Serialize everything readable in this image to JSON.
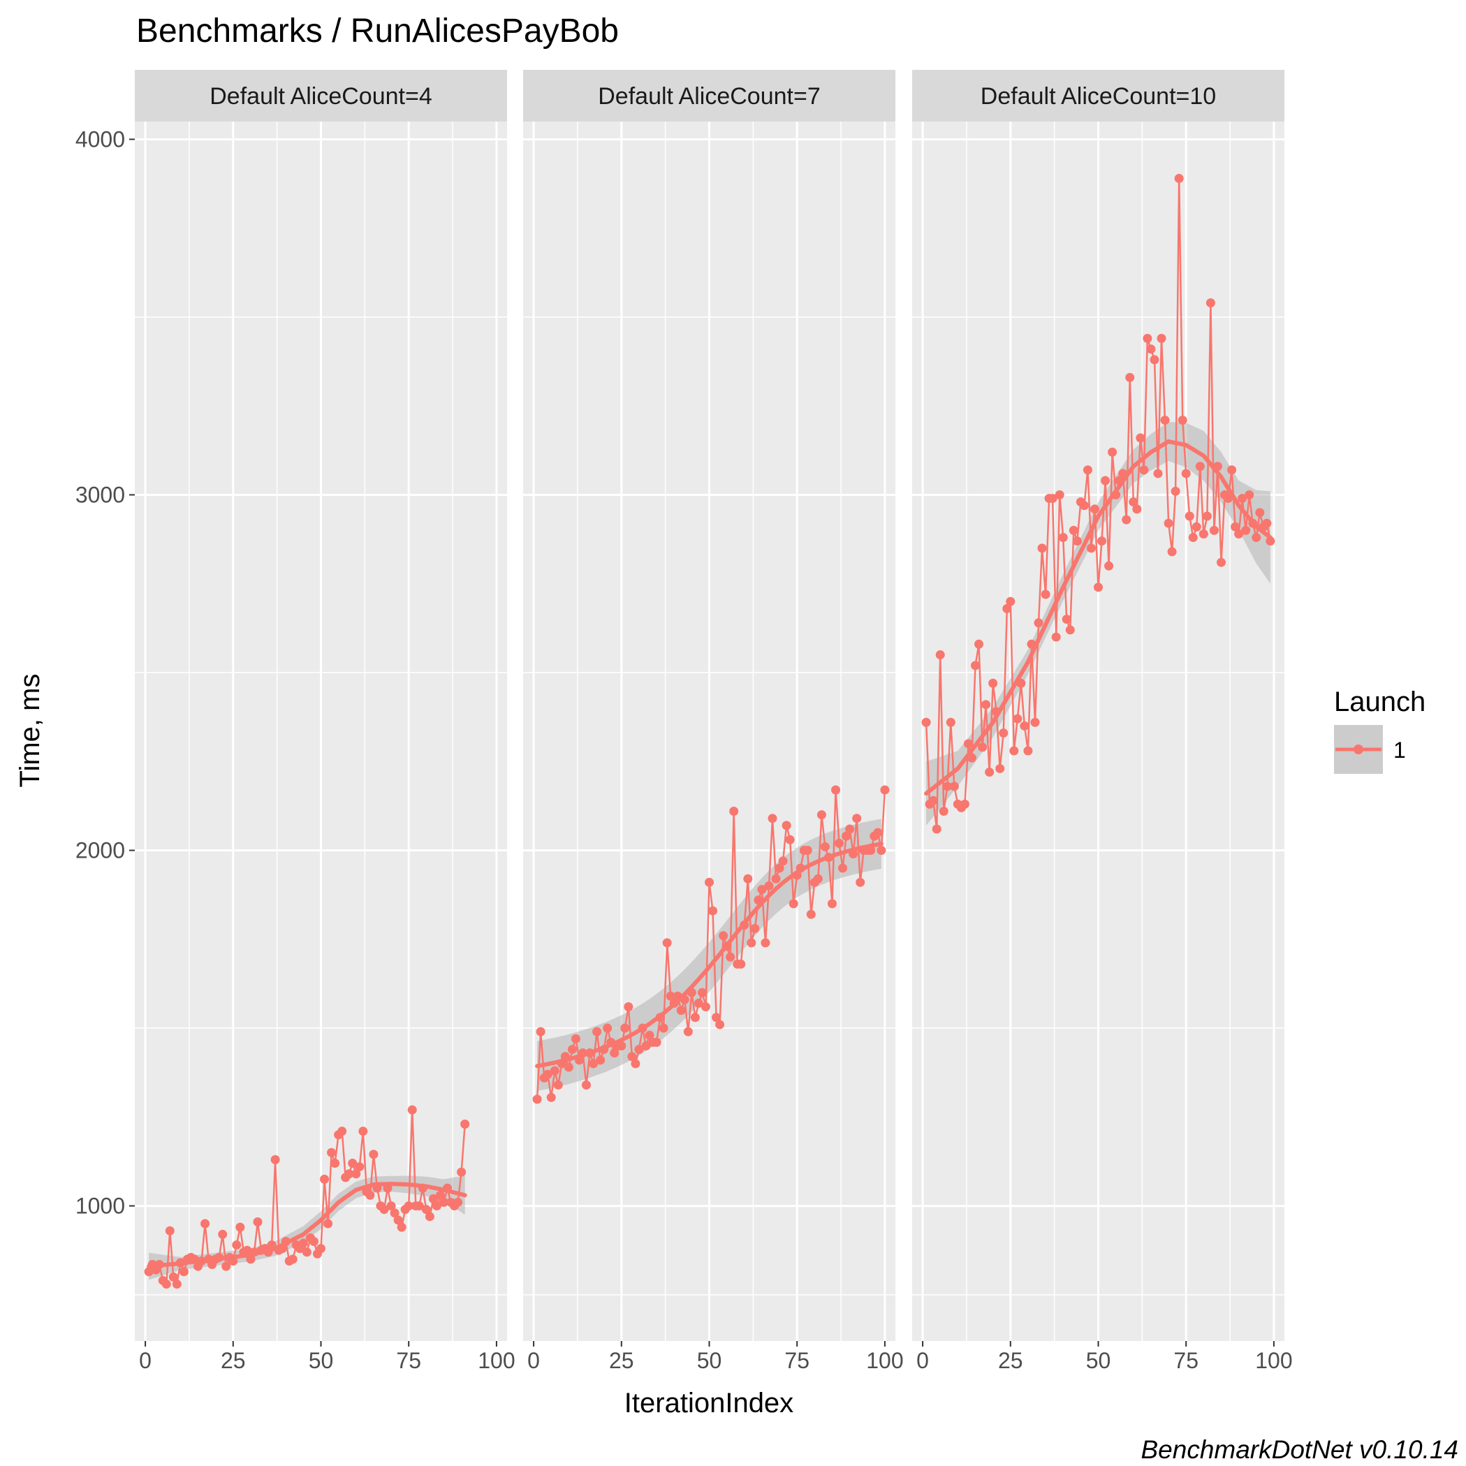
{
  "title": "Benchmarks / RunAlicesPayBob",
  "caption": "BenchmarkDotNet v0.10.14",
  "colors": {
    "series": "#f8766d",
    "panel_bg": "#ebebeb",
    "strip_bg": "#d9d9d9",
    "grid": "#ffffff",
    "ribbon": "#b3b3b3"
  },
  "legend": {
    "title": "Launch",
    "items": [
      "1"
    ]
  },
  "chart_data": {
    "type": "line",
    "facets": [
      "Default AliceCount=4",
      "Default AliceCount=7",
      "Default AliceCount=10"
    ],
    "xlabel": "IterationIndex",
    "ylabel": "Time, ms",
    "xlim": [
      -3,
      103
    ],
    "ylim": [
      620,
      4050
    ],
    "x_ticks": [
      0,
      25,
      50,
      75,
      100
    ],
    "x_tick_labels": [
      "0",
      "25",
      "50",
      "75",
      "100"
    ],
    "y_ticks": [
      1000,
      2000,
      3000,
      4000
    ],
    "y_tick_labels": [
      "1000",
      "2000",
      "3000",
      "4000"
    ],
    "grid": true,
    "legend_position": "right",
    "series": [
      {
        "facet": "Default AliceCount=4",
        "name": "1",
        "x": [
          1,
          2,
          3,
          4,
          5,
          6,
          7,
          8,
          9,
          10,
          11,
          12,
          13,
          14,
          15,
          16,
          17,
          18,
          19,
          20,
          21,
          22,
          23,
          24,
          25,
          26,
          27,
          28,
          29,
          30,
          31,
          32,
          33,
          34,
          35,
          36,
          37,
          38,
          39,
          40,
          41,
          42,
          43,
          44,
          45,
          46,
          47,
          48,
          49,
          50,
          51,
          52,
          53,
          54,
          55,
          56,
          57,
          58,
          59,
          60,
          61,
          62,
          63,
          64,
          65,
          66,
          67,
          68,
          69,
          70,
          71,
          72,
          73,
          74,
          75,
          76,
          77,
          78,
          79,
          80,
          81,
          82,
          83,
          84,
          85,
          86,
          87,
          88,
          89,
          90,
          91
        ],
        "values": [
          815,
          835,
          820,
          835,
          790,
          780,
          930,
          800,
          780,
          840,
          815,
          850,
          855,
          850,
          830,
          845,
          950,
          850,
          835,
          850,
          855,
          920,
          830,
          855,
          845,
          890,
          940,
          870,
          875,
          850,
          870,
          955,
          875,
          880,
          870,
          890,
          1130,
          875,
          880,
          900,
          845,
          850,
          890,
          880,
          895,
          870,
          910,
          900,
          865,
          880,
          1075,
          950,
          1150,
          1120,
          1200,
          1210,
          1080,
          1090,
          1120,
          1090,
          1110,
          1210,
          1040,
          1030,
          1145,
          1050,
          1000,
          990,
          1050,
          1000,
          980,
          960,
          940,
          990,
          1000,
          1270,
          1000,
          1000,
          1050,
          990,
          970,
          1020,
          1000,
          1030,
          1010,
          1050,
          1010,
          1000,
          1010,
          1095,
          1230
        ],
        "smooth": [
          [
            1,
            830
          ],
          [
            10,
            838
          ],
          [
            20,
            850
          ],
          [
            30,
            862
          ],
          [
            37,
            880
          ],
          [
            45,
            920
          ],
          [
            50,
            960
          ],
          [
            55,
            1010
          ],
          [
            60,
            1045
          ],
          [
            65,
            1060
          ],
          [
            70,
            1062
          ],
          [
            75,
            1060
          ],
          [
            80,
            1055
          ],
          [
            85,
            1045
          ],
          [
            91,
            1030
          ]
        ],
        "ribbon_halfwidth": [
          [
            1,
            38
          ],
          [
            10,
            18
          ],
          [
            30,
            18
          ],
          [
            50,
            25
          ],
          [
            70,
            22
          ],
          [
            85,
            30
          ],
          [
            91,
            55
          ]
        ]
      },
      {
        "facet": "Default AliceCount=7",
        "name": "1",
        "x": [
          1,
          2,
          3,
          4,
          5,
          6,
          7,
          8,
          9,
          10,
          11,
          12,
          13,
          14,
          15,
          16,
          17,
          18,
          19,
          20,
          21,
          22,
          23,
          24,
          25,
          26,
          27,
          28,
          29,
          30,
          31,
          32,
          33,
          34,
          35,
          36,
          37,
          38,
          39,
          40,
          41,
          42,
          43,
          44,
          45,
          46,
          47,
          48,
          49,
          50,
          51,
          52,
          53,
          54,
          55,
          56,
          57,
          58,
          59,
          60,
          61,
          62,
          63,
          64,
          65,
          66,
          67,
          68,
          69,
          70,
          71,
          72,
          73,
          74,
          75,
          76,
          77,
          78,
          79,
          80,
          81,
          82,
          83,
          84,
          85,
          86,
          87,
          88,
          89,
          90,
          91,
          92,
          93,
          94,
          95,
          96,
          97,
          98,
          99,
          100
        ],
        "values": [
          1300,
          1490,
          1360,
          1370,
          1305,
          1380,
          1340,
          1400,
          1420,
          1390,
          1440,
          1470,
          1410,
          1430,
          1340,
          1430,
          1400,
          1490,
          1410,
          1440,
          1500,
          1460,
          1430,
          1450,
          1450,
          1500,
          1560,
          1420,
          1400,
          1440,
          1500,
          1450,
          1480,
          1460,
          1460,
          1530,
          1500,
          1740,
          1590,
          1570,
          1590,
          1550,
          1580,
          1490,
          1600,
          1530,
          1570,
          1600,
          1560,
          1910,
          1830,
          1530,
          1510,
          1760,
          1730,
          1700,
          2110,
          1680,
          1680,
          1790,
          1920,
          1740,
          1780,
          1860,
          1890,
          1740,
          1900,
          2090,
          1920,
          1950,
          1970,
          2070,
          2030,
          1850,
          1930,
          1950,
          2000,
          2000,
          1820,
          1910,
          1920,
          2100,
          2010,
          1980,
          1850,
          2170,
          2020,
          1950,
          2040,
          2060,
          1990,
          2090,
          1910,
          2000,
          2000,
          2000,
          2040,
          2050,
          2000,
          2170
        ]
      },
      {
        "facet": "Default AliceCount=10",
        "name": "1",
        "x": [
          1,
          2,
          3,
          4,
          5,
          6,
          7,
          8,
          9,
          10,
          11,
          12,
          13,
          14,
          15,
          16,
          17,
          18,
          19,
          20,
          21,
          22,
          23,
          24,
          25,
          26,
          27,
          28,
          29,
          30,
          31,
          32,
          33,
          34,
          35,
          36,
          37,
          38,
          39,
          40,
          41,
          42,
          43,
          44,
          45,
          46,
          47,
          48,
          49,
          50,
          51,
          52,
          53,
          54,
          55,
          56,
          57,
          58,
          59,
          60,
          61,
          62,
          63,
          64,
          65,
          66,
          67,
          68,
          69,
          70,
          71,
          72,
          73,
          74,
          75,
          76,
          77,
          78,
          79,
          80,
          81,
          82,
          83,
          84,
          85,
          86,
          87,
          88,
          89,
          90,
          91,
          92,
          93,
          94,
          95,
          96,
          97,
          98,
          99
        ],
        "values": [
          2360,
          2130,
          2140,
          2060,
          2550,
          2110,
          2180,
          2360,
          2180,
          2130,
          2120,
          2130,
          2300,
          2260,
          2520,
          2580,
          2290,
          2410,
          2220,
          2470,
          2390,
          2230,
          2330,
          2680,
          2700,
          2280,
          2370,
          2470,
          2350,
          2280,
          2580,
          2360,
          2640,
          2850,
          2720,
          2990,
          2990,
          2600,
          3000,
          2880,
          2650,
          2620,
          2900,
          2870,
          2980,
          2970,
          3070,
          2850,
          2960,
          2740,
          2870,
          3040,
          2800,
          3120,
          3000,
          3040,
          3060,
          2930,
          3330,
          2980,
          2960,
          3160,
          3070,
          3440,
          3410,
          3380,
          3060,
          3440,
          3210,
          2920,
          2840,
          3010,
          3890,
          3210,
          3060,
          2940,
          2880,
          2910,
          3080,
          2890,
          2940,
          3540,
          2900,
          3080,
          2810,
          3000,
          2990,
          3070,
          2910,
          2890,
          2990,
          2900,
          3000,
          2920,
          2880,
          2950,
          2910,
          2920,
          2870
        ],
        "smooth": [
          [
            1,
            2160
          ],
          [
            10,
            2230
          ],
          [
            20,
            2360
          ],
          [
            30,
            2530
          ],
          [
            40,
            2740
          ],
          [
            50,
            2940
          ],
          [
            60,
            3080
          ],
          [
            65,
            3120
          ],
          [
            70,
            3150
          ],
          [
            75,
            3140
          ],
          [
            80,
            3110
          ],
          [
            85,
            3050
          ],
          [
            90,
            2970
          ],
          [
            95,
            2910
          ],
          [
            99,
            2880
          ]
        ],
        "ribbon_halfwidth": [
          [
            1,
            90
          ],
          [
            10,
            50
          ],
          [
            30,
            35
          ],
          [
            50,
            40
          ],
          [
            70,
            55
          ],
          [
            80,
            70
          ],
          [
            90,
            70
          ],
          [
            99,
            130
          ]
        ]
      }
    ]
  }
}
